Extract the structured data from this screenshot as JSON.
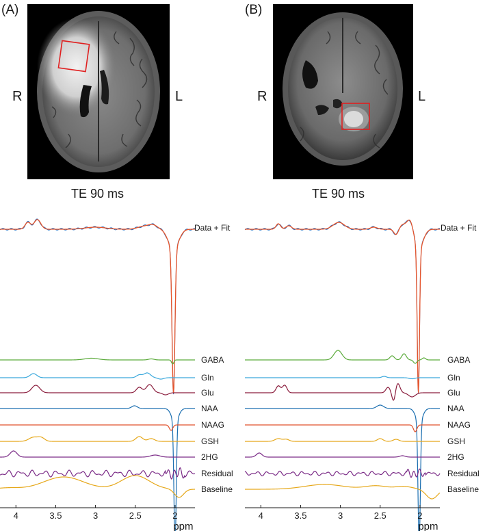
{
  "panels": [
    {
      "id": "A",
      "label": "(A)",
      "side_left": "R",
      "side_right": "L",
      "te_label": "TE 90 ms",
      "xaxis_unit": "ppm",
      "xticks": [
        "4",
        "3.5",
        "3",
        "2.5",
        "2"
      ],
      "row_labels": [
        "Data + Fit",
        "GABA",
        "Gln",
        "Glu",
        "NAA",
        "NAAG",
        "GSH",
        "2HG",
        "Residual",
        "Baseline"
      ]
    },
    {
      "id": "B",
      "label": "(B)",
      "side_left": "R",
      "side_right": "L",
      "te_label": "TE 90 ms",
      "xaxis_unit": "ppm",
      "xticks": [
        "4",
        "3.5",
        "3",
        "2.5",
        "2"
      ],
      "row_labels": [
        "Data + Fit",
        "GABA",
        "Gln",
        "Glu",
        "NAA",
        "NAAG",
        "GSH",
        "2HG",
        "Residual",
        "Baseline"
      ]
    }
  ],
  "chart_data": [
    {
      "type": "line",
      "xlabel": "ppm",
      "xlim": [
        4.2,
        1.75
      ],
      "xticks": [
        4,
        3.5,
        3,
        2.5,
        2
      ],
      "series": [
        {
          "name": "Data + Fit",
          "color": "#e8542a"
        },
        {
          "name": "GABA",
          "color": "#5aaa3a"
        },
        {
          "name": "Gln",
          "color": "#3aa8dc"
        },
        {
          "name": "Glu",
          "color": "#8a1c3c"
        },
        {
          "name": "NAA",
          "color": "#1a6eb0"
        },
        {
          "name": "NAAG",
          "color": "#e0502a"
        },
        {
          "name": "GSH",
          "color": "#e6a81a"
        },
        {
          "name": "2HG",
          "color": "#7a2a86"
        },
        {
          "name": "Residual",
          "color": "#7a2a86"
        },
        {
          "name": "Baseline",
          "color": "#e6a81a"
        }
      ]
    },
    {
      "type": "line",
      "xlabel": "ppm",
      "xlim": [
        4.2,
        1.75
      ],
      "xticks": [
        4,
        3.5,
        3,
        2.5,
        2
      ],
      "series": [
        {
          "name": "Data + Fit",
          "color": "#e8542a"
        },
        {
          "name": "GABA",
          "color": "#5aaa3a"
        },
        {
          "name": "Gln",
          "color": "#3aa8dc"
        },
        {
          "name": "Glu",
          "color": "#8a1c3c"
        },
        {
          "name": "NAA",
          "color": "#1a6eb0"
        },
        {
          "name": "NAAG",
          "color": "#e0502a"
        },
        {
          "name": "GSH",
          "color": "#e6a81a"
        },
        {
          "name": "2HG",
          "color": "#7a2a86"
        },
        {
          "name": "Residual",
          "color": "#7a2a86"
        },
        {
          "name": "Baseline",
          "color": "#e6a81a"
        }
      ]
    }
  ],
  "colors": {
    "roi_box": "#e02020",
    "data_line": "#2a6ebd",
    "fit_line": "#e8542a"
  }
}
